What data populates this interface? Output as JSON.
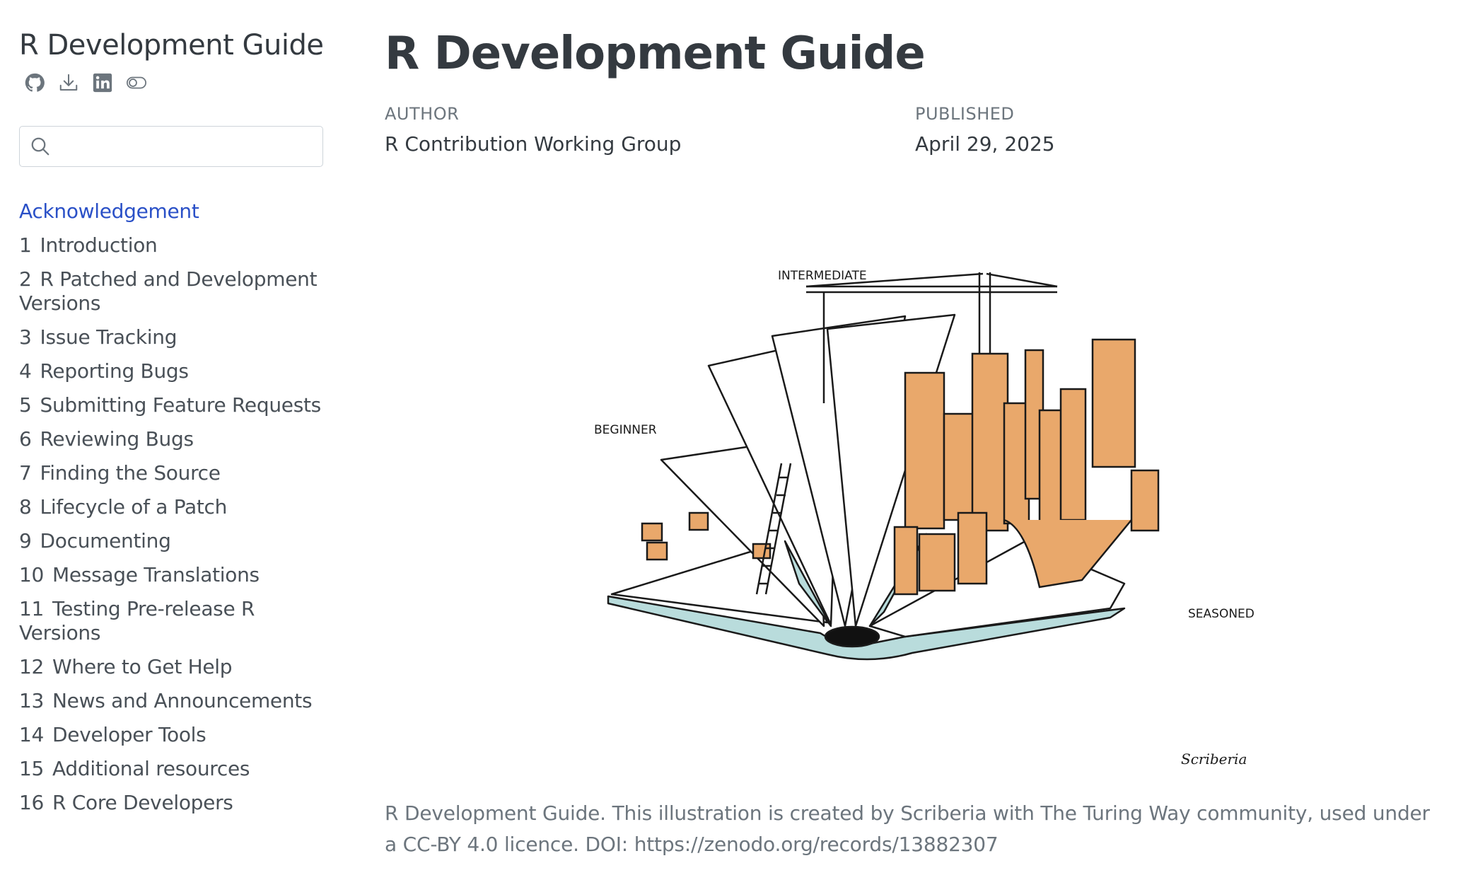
{
  "sidebar": {
    "title": "R Development Guide",
    "tools": [
      {
        "icon": "github-icon"
      },
      {
        "icon": "download-icon"
      },
      {
        "icon": "linkedin-icon"
      },
      {
        "icon": "toggle-icon"
      }
    ],
    "search": {
      "placeholder": "",
      "value": ""
    },
    "toc": [
      {
        "num": "",
        "label": "Acknowledgement",
        "active": true
      },
      {
        "num": "1",
        "label": "Introduction"
      },
      {
        "num": "2",
        "label": "R Patched and Development Versions"
      },
      {
        "num": "3",
        "label": "Issue Tracking"
      },
      {
        "num": "4",
        "label": "Reporting Bugs"
      },
      {
        "num": "5",
        "label": "Submitting Feature Requests"
      },
      {
        "num": "6",
        "label": "Reviewing Bugs"
      },
      {
        "num": "7",
        "label": "Finding the Source"
      },
      {
        "num": "8",
        "label": "Lifecycle of a Patch"
      },
      {
        "num": "9",
        "label": "Documenting"
      },
      {
        "num": "10",
        "label": "Message Translations"
      },
      {
        "num": "11",
        "label": "Testing Pre-release R Versions"
      },
      {
        "num": "12",
        "label": "Where to Get Help"
      },
      {
        "num": "13",
        "label": "News and Announcements"
      },
      {
        "num": "14",
        "label": "Developer Tools"
      },
      {
        "num": "15",
        "label": "Additional resources"
      },
      {
        "num": "16",
        "label": "R Core Developers"
      }
    ]
  },
  "main": {
    "title": "R Development Guide",
    "author_label": "Author",
    "author": "R Contribution Working Group",
    "published_label": "Published",
    "published": "April 29, 2025",
    "illustration": {
      "label_beginner": "BEGINNER",
      "label_intermediate": "INTERMEDIATE",
      "label_seasoned": "SEASONED",
      "signature": "Scriberia"
    },
    "caption": "R Development Guide. This illustration is created by Scriberia with The Turing Way community, used under a CC-BY 4.0 licence. DOI: https://zenodo.org/records/13882307"
  },
  "colors": {
    "accent": "#2a50c7",
    "text": "#343a40",
    "muted": "#6c757d",
    "illustration_orange": "#e9a86b",
    "illustration_teal": "#b9dcdc"
  }
}
